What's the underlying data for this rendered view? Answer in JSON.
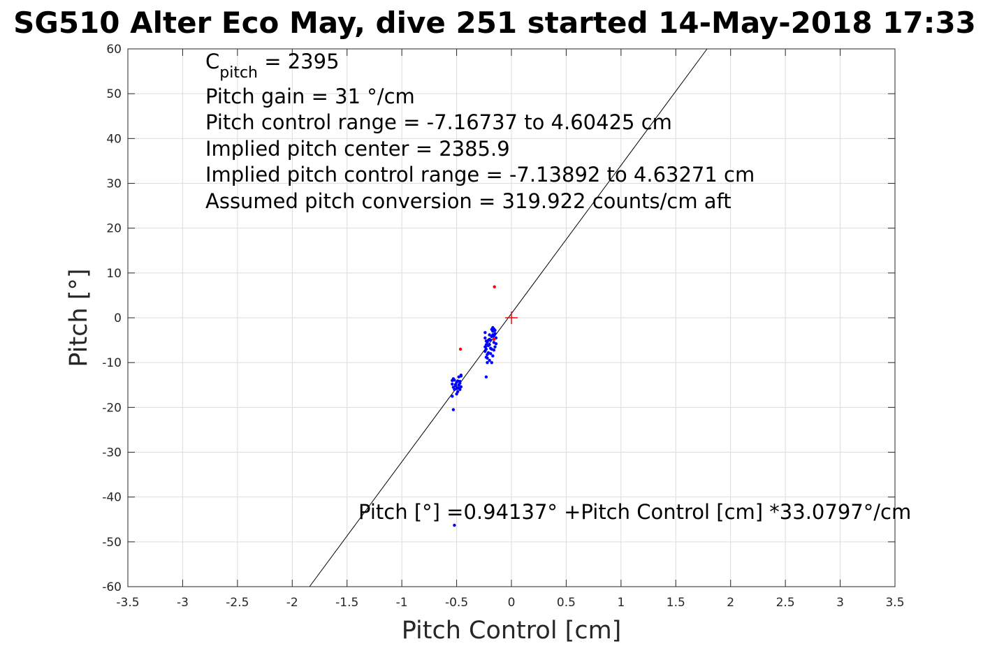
{
  "chart_data": {
    "type": "scatter",
    "title": "SG510 Alter Eco May, dive 251 started 14-May-2018 17:33",
    "xlabel": "Pitch Control [cm]",
    "ylabel": "Pitch [°]",
    "xlim": [
      -3.5,
      3.5
    ],
    "ylim": [
      -60,
      60
    ],
    "xticks": [
      "-3.5",
      "-3",
      "-2.5",
      "-2",
      "-1.5",
      "-1",
      "-0.5",
      "0",
      "0.5",
      "1",
      "1.5",
      "2",
      "2.5",
      "3",
      "3.5"
    ],
    "yticks": [
      "-60",
      "-50",
      "-40",
      "-30",
      "-20",
      "-10",
      "0",
      "10",
      "20",
      "30",
      "40",
      "50",
      "60"
    ],
    "grid": true,
    "annotations": {
      "c_pitch_symbol": "C",
      "c_pitch_sub": "pitch",
      "c_pitch_value": " = 2395",
      "line2": "Pitch gain = 31 °/cm",
      "line3": "Pitch control range = -7.16737 to 4.60425 cm",
      "line4": "Implied pitch center = 2385.9",
      "line5": "Implied pitch control range = -7.13892 to 4.63271 cm",
      "line6": "Assumed pitch conversion = 319.922 counts/cm aft",
      "fit_equation": "Pitch [°] =0.94137° +Pitch Control [cm] *33.0797°/cm"
    },
    "fit_line": {
      "intercept": 0.94137,
      "slope": 33.0797,
      "color": "#000000"
    },
    "center_marker": {
      "x": 0,
      "y": 0,
      "color": "#ff0000"
    },
    "series": [
      {
        "color": "#0000ff",
        "points": [
          [
            -0.54,
            -14.0
          ],
          [
            -0.54,
            -14.8
          ],
          [
            -0.53,
            -15.5
          ],
          [
            -0.52,
            -16.0
          ],
          [
            -0.53,
            -13.6
          ],
          [
            -0.51,
            -15.2
          ],
          [
            -0.5,
            -14.4
          ],
          [
            -0.5,
            -15.8
          ],
          [
            -0.49,
            -16.5
          ],
          [
            -0.49,
            -14.1
          ],
          [
            -0.48,
            -13.2
          ],
          [
            -0.48,
            -15.0
          ],
          [
            -0.47,
            -14.6
          ],
          [
            -0.47,
            -16.0
          ],
          [
            -0.46,
            -13.0
          ],
          [
            -0.46,
            -12.8
          ],
          [
            -0.46,
            -15.4
          ],
          [
            -0.47,
            -14.2
          ],
          [
            -0.48,
            -15.7
          ],
          [
            -0.5,
            -17.0
          ],
          [
            -0.54,
            -17.5
          ],
          [
            -0.53,
            -20.5
          ],
          [
            -0.52,
            -46.3
          ],
          [
            -0.51,
            -14.9
          ],
          [
            -0.52,
            -13.9
          ],
          [
            -0.24,
            -3.3
          ],
          [
            -0.24,
            -4.5
          ],
          [
            -0.23,
            -5.2
          ],
          [
            -0.23,
            -6.0
          ],
          [
            -0.23,
            -7.0
          ],
          [
            -0.22,
            -8.2
          ],
          [
            -0.22,
            -9.0
          ],
          [
            -0.24,
            -6.5
          ],
          [
            -0.24,
            -7.5
          ],
          [
            -0.23,
            -8.8
          ],
          [
            -0.22,
            -5.5
          ],
          [
            -0.21,
            -6.2
          ],
          [
            -0.21,
            -7.8
          ],
          [
            -0.2,
            -9.5
          ],
          [
            -0.2,
            -4.8
          ],
          [
            -0.19,
            -5.0
          ],
          [
            -0.19,
            -6.8
          ],
          [
            -0.19,
            -8.0
          ],
          [
            -0.18,
            -10.0
          ],
          [
            -0.18,
            -4.2
          ],
          [
            -0.17,
            -2.2
          ],
          [
            -0.17,
            -3.0
          ],
          [
            -0.17,
            -3.8
          ],
          [
            -0.16,
            -2.5
          ],
          [
            -0.16,
            -4.0
          ],
          [
            -0.16,
            -5.5
          ],
          [
            -0.15,
            -3.5
          ],
          [
            -0.15,
            -6.5
          ],
          [
            -0.15,
            -2.8
          ],
          [
            -0.14,
            -4.5
          ],
          [
            -0.14,
            -5.8
          ],
          [
            -0.21,
            -5.0
          ],
          [
            -0.2,
            -6.0
          ],
          [
            -0.18,
            -7.0
          ],
          [
            -0.17,
            -8.5
          ],
          [
            -0.23,
            -13.2
          ],
          [
            -0.22,
            -10.0
          ],
          [
            -0.2,
            -3.8
          ],
          [
            -0.18,
            -2.6
          ],
          [
            -0.16,
            -7.2
          ]
        ]
      },
      {
        "color": "#ff0000",
        "points": [
          [
            -0.155,
            6.9
          ],
          [
            -0.465,
            -7.0
          ],
          [
            -0.16,
            -4.8
          ]
        ]
      }
    ]
  }
}
